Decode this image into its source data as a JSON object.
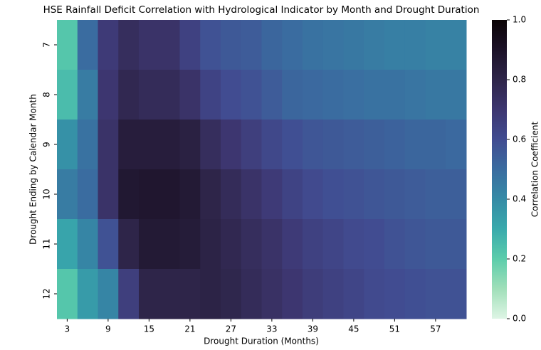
{
  "chart_data": {
    "type": "heatmap",
    "title": "HSE Rainfall Deficit Correlation with Hydrological Indicator by Month and Drought Duration",
    "x_label": "Drought Duration (Months)",
    "y_label": "Drought Ending by Calendar Month",
    "colorbar_label": "Correlation Coefficient",
    "x": [
      "3",
      null,
      "9",
      null,
      "15",
      null,
      "21",
      null,
      "27",
      null,
      "33",
      null,
      "39",
      null,
      "45",
      null,
      "51",
      null,
      "57",
      null
    ],
    "y": [
      "7",
      "8",
      "9",
      "10",
      "11",
      "12"
    ],
    "z": [
      [
        0.22,
        0.5,
        0.68,
        0.75,
        0.72,
        0.72,
        0.65,
        0.58,
        0.56,
        0.55,
        0.52,
        0.5,
        0.48,
        0.47,
        0.46,
        0.45,
        0.44,
        0.44,
        0.43,
        0.43
      ],
      [
        0.25,
        0.45,
        0.7,
        0.78,
        0.76,
        0.76,
        0.72,
        0.64,
        0.6,
        0.58,
        0.55,
        0.52,
        0.51,
        0.5,
        0.49,
        0.48,
        0.48,
        0.47,
        0.46,
        0.46
      ],
      [
        0.38,
        0.48,
        0.72,
        0.84,
        0.84,
        0.84,
        0.82,
        0.75,
        0.7,
        0.66,
        0.62,
        0.59,
        0.57,
        0.56,
        0.55,
        0.54,
        0.53,
        0.52,
        0.52,
        0.51
      ],
      [
        0.45,
        0.5,
        0.72,
        0.87,
        0.88,
        0.88,
        0.86,
        0.8,
        0.76,
        0.72,
        0.68,
        0.64,
        0.61,
        0.59,
        0.58,
        0.57,
        0.56,
        0.55,
        0.54,
        0.54
      ],
      [
        0.32,
        0.42,
        0.58,
        0.8,
        0.86,
        0.86,
        0.85,
        0.81,
        0.78,
        0.75,
        0.72,
        0.68,
        0.65,
        0.63,
        0.61,
        0.6,
        0.58,
        0.57,
        0.56,
        0.56
      ],
      [
        0.22,
        0.35,
        0.42,
        0.66,
        0.8,
        0.8,
        0.8,
        0.81,
        0.79,
        0.76,
        0.73,
        0.7,
        0.67,
        0.65,
        0.63,
        0.61,
        0.6,
        0.59,
        0.58,
        0.58
      ]
    ],
    "vlim": [
      0,
      1
    ],
    "colormap": [
      "#def5e5",
      "#a0dfb9",
      "#5ccdab",
      "#39aaac",
      "#358ba6",
      "#3a6ca0",
      "#414c91",
      "#3d3670",
      "#2e2549",
      "#1c1228",
      "#0b0405"
    ],
    "cticks": [
      {
        "value": 0,
        "label": "0.0"
      },
      {
        "value": 0.2,
        "label": "0.2"
      },
      {
        "value": 0.4,
        "label": "0.4"
      },
      {
        "value": 0.6,
        "label": "0.6"
      },
      {
        "value": 0.8,
        "label": "0.8"
      },
      {
        "value": 1,
        "label": "1.0"
      }
    ]
  }
}
